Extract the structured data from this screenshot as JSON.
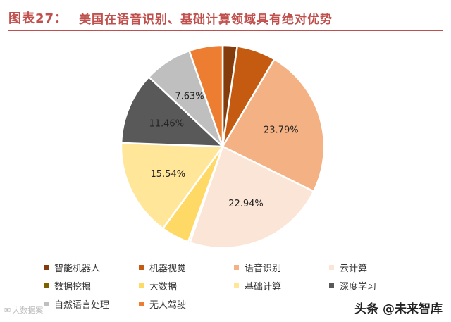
{
  "figure": {
    "label": "图表27：",
    "title": "美国在语音识别、基础计算领域具有绝对优势"
  },
  "chart_data": {
    "type": "pie",
    "categories": [
      "智能机器人",
      "机器视觉",
      "语音识别",
      "云计算",
      "数据挖掘",
      "大数据",
      "基础计算",
      "深度学习",
      "自然语言处理",
      "无人驾驶"
    ],
    "values": [
      2.3,
      6.2,
      23.79,
      22.94,
      0.3,
      4.5,
      15.54,
      11.46,
      7.63,
      5.34
    ],
    "data_labels": [
      "",
      "",
      "23.79%",
      "22.94%",
      "",
      "",
      "15.54%",
      "11.46%",
      "7.63%",
      ""
    ],
    "colors": [
      "#843c0c",
      "#c55a11",
      "#f4b183",
      "#fbe5d6",
      "#7f6000",
      "#ffd966",
      "#ffe699",
      "#595959",
      "#bfbfbf",
      "#ed7d31"
    ],
    "start_angle_deg": 0,
    "direction": "clockwise",
    "legend_position": "bottom"
  },
  "watermarks": {
    "left": "大数据案",
    "right": "头条 @未来智库",
    "left_icon": "weibo-icon"
  }
}
